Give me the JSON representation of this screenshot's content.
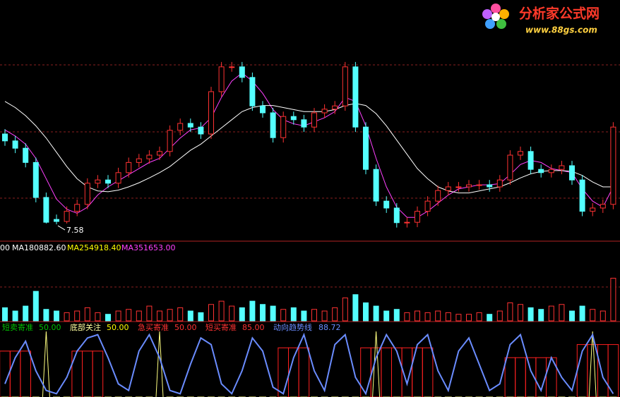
{
  "logo": {
    "title": "分析家公式网",
    "url": "www.88gs.com"
  },
  "chart_data": [
    {
      "type": "candlestick",
      "annotation": 7.58,
      "ylim": [
        7.2,
        12.4
      ],
      "up_color": "#ff3232",
      "down_color": "#54ffff",
      "open": [
        9.8,
        9.63,
        9.45,
        9.1,
        8.24,
        7.7,
        7.65,
        7.9,
        8.07,
        8.59,
        8.67,
        8.59,
        8.85,
        9.1,
        9.19,
        9.28,
        9.37,
        9.89,
        10.06,
        9.97,
        9.8,
        10.84,
        11.45,
        11.45,
        11.19,
        10.49,
        10.32,
        9.71,
        10.23,
        10.15,
        9.97,
        10.32,
        10.41,
        10.49,
        11.45,
        9.97,
        8.93,
        8.15,
        7.98,
        7.62,
        7.63,
        7.9,
        8.15,
        8.41,
        8.5,
        8.5,
        8.55,
        8.55,
        8.5,
        8.67,
        9.28,
        9.37,
        8.93,
        8.85,
        8.93,
        9.02,
        8.67,
        7.9,
        7.98,
        8.07
      ],
      "high": [
        9.92,
        9.75,
        9.57,
        9.22,
        8.36,
        7.82,
        8.02,
        8.19,
        8.71,
        8.79,
        8.79,
        8.97,
        9.22,
        9.31,
        9.4,
        9.49,
        10.01,
        10.18,
        10.18,
        10.09,
        10.96,
        11.57,
        11.57,
        11.57,
        11.31,
        10.61,
        10.44,
        10.35,
        10.35,
        10.27,
        10.44,
        10.53,
        10.61,
        11.57,
        11.57,
        10.09,
        9.05,
        8.27,
        8.1,
        7.75,
        8.02,
        8.27,
        8.53,
        8.62,
        8.62,
        8.67,
        8.67,
        8.67,
        8.79,
        9.4,
        9.49,
        9.49,
        9.05,
        9.05,
        9.14,
        9.14,
        8.79,
        8.1,
        8.19,
        10.09
      ],
      "low": [
        9.51,
        9.33,
        8.98,
        8.12,
        7.6,
        7.58,
        7.6,
        7.78,
        7.95,
        8.47,
        8.47,
        8.47,
        8.73,
        8.98,
        9.07,
        9.16,
        9.25,
        9.77,
        9.85,
        9.68,
        9.68,
        10.72,
        11.33,
        11.07,
        10.37,
        10.2,
        9.59,
        9.59,
        10.03,
        9.85,
        9.85,
        10.2,
        10.29,
        10.37,
        9.85,
        8.81,
        8.03,
        7.86,
        7.5,
        7.5,
        7.51,
        7.78,
        8.03,
        8.29,
        8.38,
        8.38,
        8.43,
        8.38,
        8.38,
        8.55,
        9.16,
        8.81,
        8.73,
        8.73,
        8.81,
        8.55,
        7.78,
        7.78,
        7.86,
        7.95
      ],
      "close": [
        9.63,
        9.45,
        9.1,
        8.24,
        7.63,
        7.65,
        7.9,
        8.07,
        8.59,
        8.67,
        8.59,
        8.85,
        9.1,
        9.19,
        9.28,
        9.37,
        9.89,
        10.06,
        9.97,
        9.8,
        10.84,
        11.45,
        11.45,
        11.19,
        10.49,
        10.32,
        9.71,
        10.23,
        10.15,
        9.97,
        10.32,
        10.41,
        10.49,
        11.45,
        9.97,
        8.93,
        8.15,
        7.98,
        7.62,
        7.63,
        7.9,
        8.15,
        8.41,
        8.5,
        8.5,
        8.55,
        8.55,
        8.5,
        8.67,
        9.28,
        9.37,
        8.93,
        8.85,
        8.93,
        9.02,
        8.67,
        7.9,
        7.98,
        8.07,
        9.97
      ],
      "lines": [
        {
          "color": "#ff40ff",
          "values": [
            9.9,
            9.75,
            9.55,
            9.2,
            8.7,
            8.2,
            7.95,
            7.85,
            8.0,
            8.3,
            8.5,
            8.65,
            8.8,
            8.95,
            9.1,
            9.2,
            9.45,
            9.7,
            9.9,
            9.95,
            10.2,
            10.7,
            11.1,
            11.3,
            11.1,
            10.8,
            10.4,
            10.15,
            10.05,
            10.0,
            10.1,
            10.2,
            10.35,
            10.7,
            10.6,
            10.0,
            9.2,
            8.5,
            8.0,
            7.75,
            7.75,
            7.9,
            8.1,
            8.3,
            8.45,
            8.5,
            8.55,
            8.55,
            8.58,
            8.8,
            9.05,
            9.15,
            9.1,
            8.95,
            8.9,
            8.85,
            8.45,
            8.15,
            8.0,
            8.5
          ]
        },
        {
          "color": "#ffffff",
          "values": [
            10.6,
            10.45,
            10.25,
            10.0,
            9.7,
            9.35,
            9.0,
            8.7,
            8.5,
            8.4,
            8.38,
            8.42,
            8.5,
            8.6,
            8.72,
            8.85,
            9.0,
            9.2,
            9.4,
            9.55,
            9.75,
            9.95,
            10.15,
            10.35,
            10.45,
            10.5,
            10.5,
            10.45,
            10.4,
            10.35,
            10.35,
            10.35,
            10.4,
            10.5,
            10.55,
            10.5,
            10.3,
            10.0,
            9.65,
            9.3,
            8.95,
            8.7,
            8.5,
            8.4,
            8.35,
            8.35,
            8.4,
            8.45,
            8.5,
            8.6,
            8.72,
            8.82,
            8.88,
            8.9,
            8.9,
            8.88,
            8.78,
            8.62,
            8.5,
            8.5
          ]
        }
      ]
    },
    {
      "type": "volume",
      "cut_label": "00",
      "ylim": [
        0,
        200000
      ],
      "legend_names": [
        "MA1",
        "MA2",
        "MA3"
      ],
      "legend_values": [
        80882.6,
        54918.4,
        51653
      ],
      "legend_value_labels": [
        "80882.60",
        "54918.40",
        "51653.00"
      ],
      "legend_colors": [
        "#ffffff",
        "#ffff00",
        "#ff40ff"
      ],
      "values": [
        40000,
        30000,
        45000,
        90000,
        35000,
        30000,
        25000,
        30000,
        40000,
        25000,
        20000,
        30000,
        35000,
        30000,
        45000,
        30000,
        35000,
        40000,
        30000,
        25000,
        50000,
        60000,
        45000,
        40000,
        60000,
        50000,
        45000,
        35000,
        40000,
        30000,
        35000,
        30000,
        40000,
        70000,
        80000,
        55000,
        45000,
        30000,
        35000,
        25000,
        30000,
        25000,
        30000,
        25000,
        20000,
        20000,
        25000,
        20000,
        30000,
        55000,
        50000,
        40000,
        35000,
        45000,
        50000,
        30000,
        45000,
        35000,
        30000,
        130000
      ]
    },
    {
      "type": "indicator",
      "ylim": [
        0,
        100
      ],
      "legend_names": [
        "短卖寄准",
        "底部关注",
        "急买寄准",
        "短买寄准",
        "动向趋势线"
      ],
      "legend_values": [
        50,
        50,
        50,
        85,
        88.72
      ],
      "legend_value_labels": [
        "50.00",
        "50.00",
        "50.00",
        "85.00",
        "88.72"
      ],
      "legend_colors": [
        "#00c000",
        "#ffff00",
        "#ff3232",
        "#ff3232",
        "#6a8cff"
      ],
      "series": [
        {
          "kind": "bar",
          "color": "#ff2020",
          "values": [
            70,
            70,
            70,
            0,
            0,
            0,
            0,
            70,
            70,
            70,
            0,
            0,
            0,
            0,
            0,
            0,
            0,
            0,
            0,
            0,
            0,
            0,
            0,
            0,
            0,
            0,
            0,
            75,
            75,
            75,
            0,
            0,
            0,
            0,
            0,
            75,
            75,
            75,
            75,
            75,
            75,
            75,
            0,
            0,
            0,
            0,
            0,
            0,
            0,
            60,
            60,
            60,
            60,
            60,
            0,
            0,
            80,
            80,
            80,
            80
          ]
        },
        {
          "kind": "spike",
          "color": "#ffff80",
          "values": [
            0,
            0,
            0,
            0,
            100,
            0,
            0,
            0,
            0,
            0,
            0,
            0,
            0,
            0,
            0,
            100,
            0,
            0,
            0,
            0,
            0,
            0,
            0,
            0,
            0,
            0,
            0,
            0,
            0,
            0,
            0,
            0,
            0,
            0,
            0,
            0,
            100,
            0,
            0,
            0,
            0,
            0,
            0,
            0,
            0,
            0,
            0,
            0,
            0,
            0,
            0,
            0,
            0,
            0,
            0,
            0,
            0,
            100,
            0,
            0
          ]
        },
        {
          "kind": "line",
          "color": "#6a8cff",
          "values": [
            20,
            60,
            85,
            40,
            10,
            5,
            30,
            70,
            90,
            95,
            60,
            20,
            10,
            70,
            95,
            60,
            10,
            5,
            50,
            90,
            80,
            20,
            5,
            40,
            90,
            70,
            15,
            5,
            60,
            95,
            40,
            10,
            80,
            95,
            30,
            5,
            60,
            95,
            70,
            20,
            80,
            95,
            40,
            10,
            70,
            90,
            50,
            10,
            20,
            80,
            95,
            40,
            10,
            60,
            30,
            10,
            70,
            95,
            30,
            5
          ]
        }
      ]
    }
  ]
}
